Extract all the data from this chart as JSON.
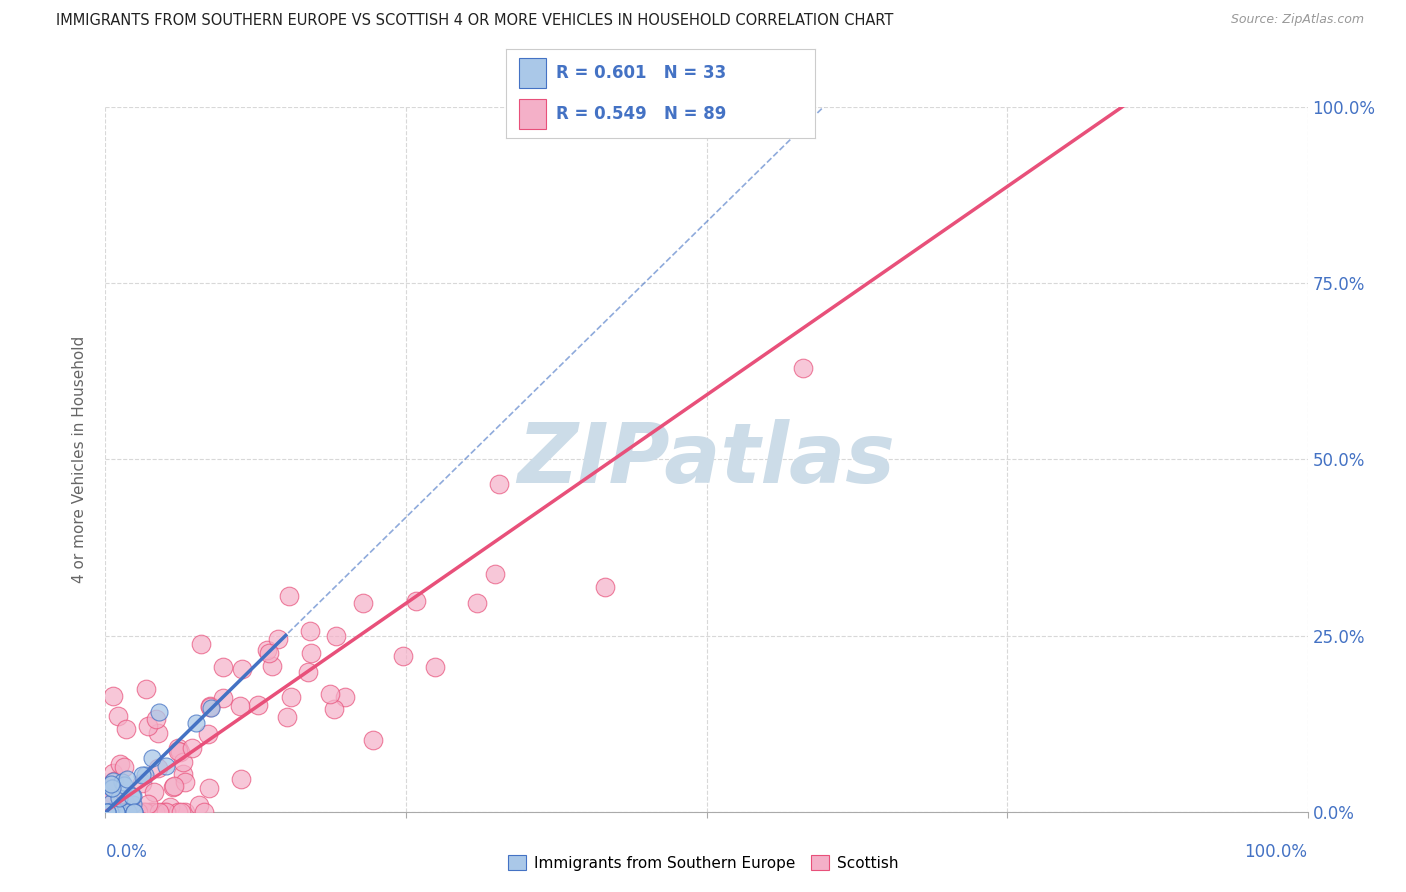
{
  "title": "IMMIGRANTS FROM SOUTHERN EUROPE VS SCOTTISH 4 OR MORE VEHICLES IN HOUSEHOLD CORRELATION CHART",
  "source": "Source: ZipAtlas.com",
  "ylabel": "4 or more Vehicles in Household",
  "series_blue": {
    "name": "Immigrants from Southern Europe",
    "R": 0.601,
    "N": 33,
    "scatter_color": "#aac8e8",
    "line_color": "#4472c4"
  },
  "series_pink": {
    "name": "Scottish",
    "R": 0.549,
    "N": 89,
    "scatter_color": "#f4b0c8",
    "line_color": "#e8507a"
  },
  "xlim": [
    0,
    100
  ],
  "ylim": [
    0,
    100
  ],
  "grid_ticks": [
    0,
    25,
    50,
    75,
    100
  ],
  "watermark": "ZIPatlas",
  "watermark_color": "#ccdce8",
  "background": "#ffffff",
  "grid_color": "#d8d8d8",
  "title_color": "#222222",
  "tick_label_color": "#4472c4",
  "legend_text_color": "#4472c4",
  "source_color": "#999999"
}
